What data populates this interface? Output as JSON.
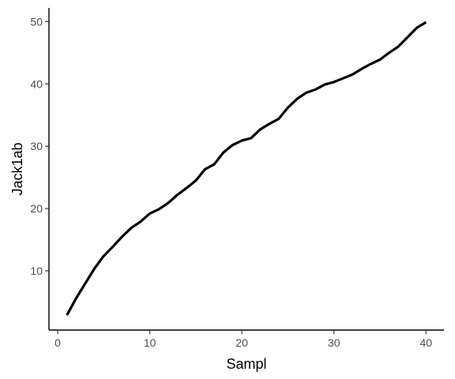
{
  "chart_data": {
    "type": "line",
    "title": "",
    "xlabel": "Sampl",
    "ylabel": "Jack1ab",
    "xlim": [
      -0.95,
      41.95
    ],
    "ylim": [
      0.5,
      52.2
    ],
    "xticks": [
      0,
      10,
      20,
      30,
      40
    ],
    "yticks": [
      10,
      20,
      30,
      40,
      50
    ],
    "grid": false,
    "legend": "none",
    "line_color": "#000000",
    "series": [
      {
        "x": [
          1,
          2,
          3,
          4,
          5,
          6,
          7,
          8,
          9,
          10,
          11,
          12,
          13,
          14,
          15,
          16,
          17,
          18,
          19,
          20,
          21,
          22,
          23,
          24,
          25,
          26,
          27,
          28,
          29,
          30,
          31,
          32,
          33,
          34,
          35,
          36,
          37,
          38,
          39,
          40
        ],
        "values": [
          2.9,
          5.6,
          8.0,
          10.4,
          12.4,
          13.9,
          15.5,
          16.9,
          17.9,
          19.2,
          19.9,
          20.9,
          22.2,
          23.3,
          24.5,
          26.3,
          27.1,
          29.0,
          30.2,
          30.9,
          31.3,
          32.7,
          33.6,
          34.4,
          36.2,
          37.6,
          38.6,
          39.1,
          39.9,
          40.3,
          40.9,
          41.5,
          42.4,
          43.2,
          43.9,
          45.0,
          46.0,
          47.5,
          49.0,
          49.9
        ]
      }
    ]
  }
}
